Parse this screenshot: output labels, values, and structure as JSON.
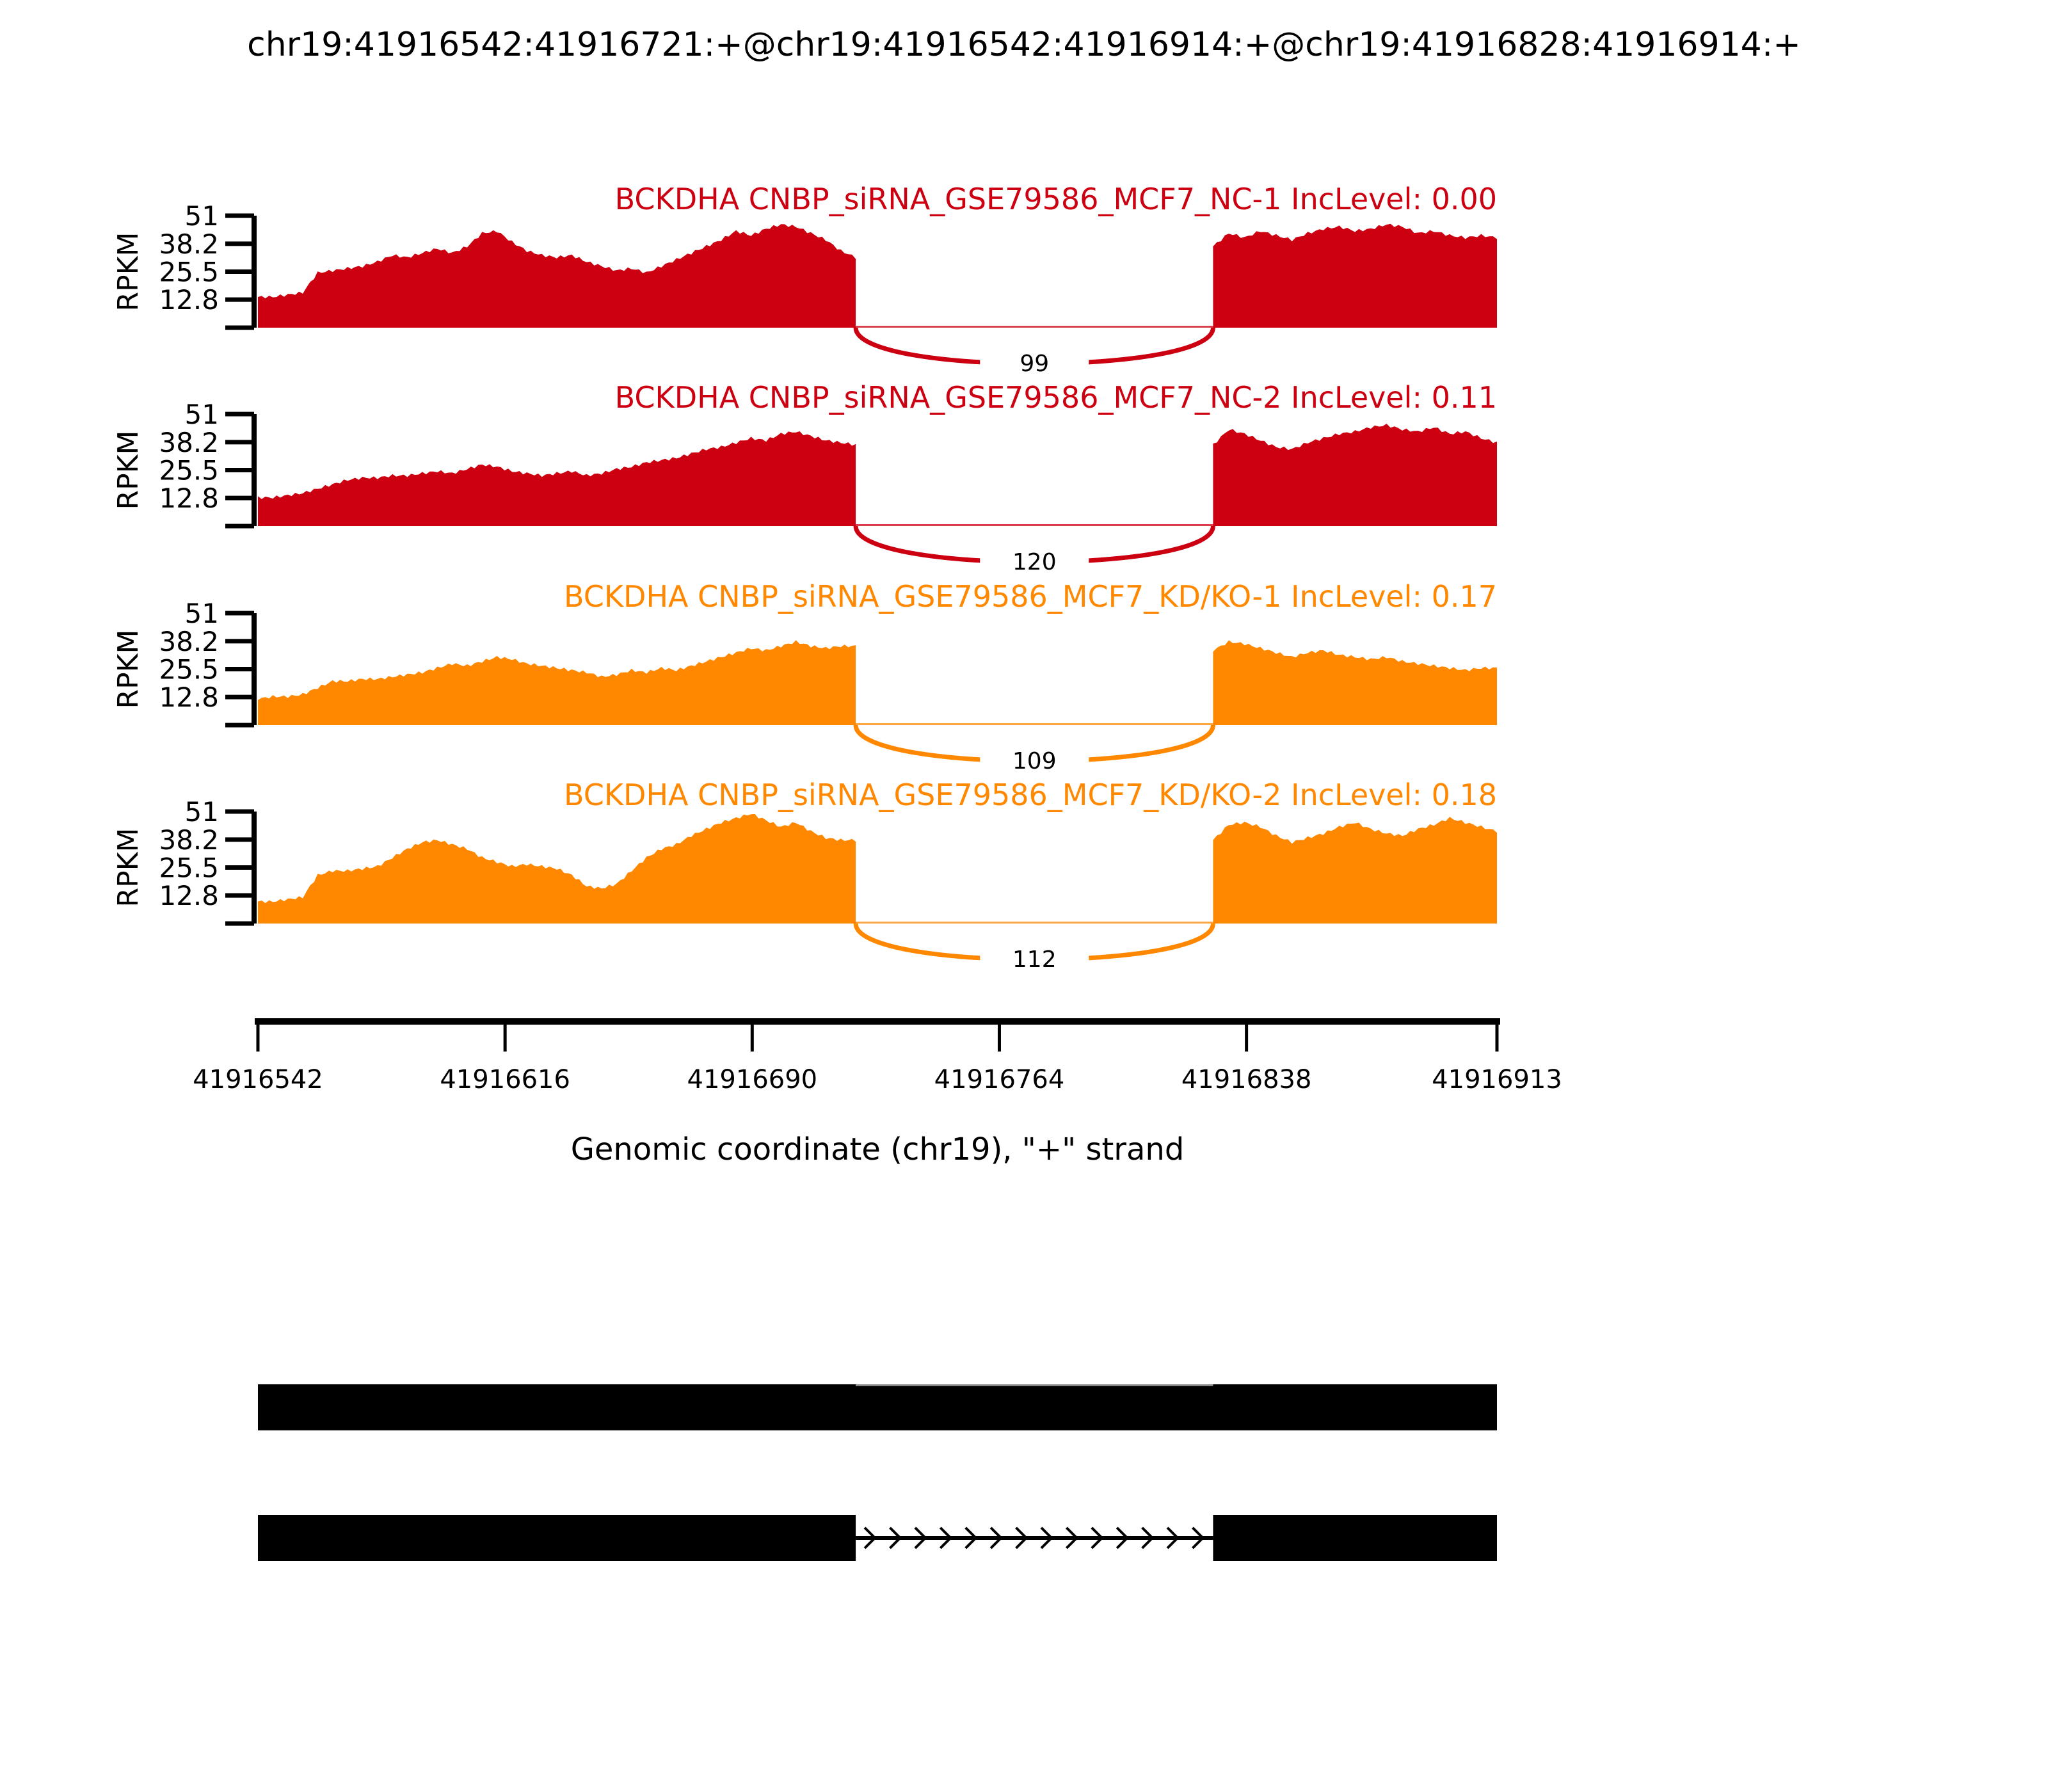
{
  "title": "chr19:41916542:41916721:+@chr19:41916542:41916914:+@chr19:41916828:41916914:+",
  "chart_data": {
    "type": "area",
    "subtype": "sashimi-plot",
    "region": {
      "chrom": "chr19",
      "start": 41916542,
      "end": 41916913,
      "strand": "+"
    },
    "xlabel": "Genomic coordinate (chr19), \"+\" strand",
    "ylabel": "RPKM",
    "ylim": [
      0,
      51
    ],
    "yticks": [
      51,
      38.2,
      25.5,
      12.8
    ],
    "xticks": [
      41916542,
      41916616,
      41916690,
      41916764,
      41916838,
      41916913
    ],
    "exon1": {
      "start": 41916542,
      "end": 41916721
    },
    "intron": {
      "start": 41916721,
      "end": 41916828
    },
    "exon2": {
      "start": 41916828,
      "end": 41916913
    },
    "group_colors": {
      "group1": "#CC0011",
      "group2": "#FF8800"
    },
    "tracks": [
      {
        "label": "BCKDHA CNBP_siRNA_GSE79586_MCF7_NC-1 IncLevel: 0.00",
        "sample": "BCKDHA CNBP_siRNA_GSE79586_MCF7_NC-1",
        "inc_level": "0.00",
        "color": "#CC0011",
        "junction_reads": 99,
        "coverage_exon1": [
          14,
          14,
          15,
          16,
          25,
          26,
          27,
          28,
          30,
          33,
          32,
          34,
          36,
          34,
          37,
          43,
          44,
          39,
          35,
          33,
          32,
          33,
          30,
          28,
          26,
          27,
          25,
          28,
          31,
          34,
          37,
          40,
          44,
          42,
          45,
          47,
          46,
          43,
          40,
          35,
          32
        ],
        "coverage_exon2": [
          37,
          43,
          41,
          44,
          42,
          40,
          43,
          45,
          46,
          44,
          45,
          47,
          46,
          43,
          44,
          42,
          41,
          42,
          41
        ]
      },
      {
        "label": "BCKDHA CNBP_siRNA_GSE79586_MCF7_NC-2 IncLevel: 0.11",
        "sample": "BCKDHA CNBP_siRNA_GSE79586_MCF7_NC-2",
        "inc_level": "0.11",
        "color": "#CC0011",
        "junction_reads": 120,
        "coverage_exon1": [
          13,
          13,
          14,
          15,
          17,
          19,
          21,
          22,
          22,
          23,
          23,
          24,
          25,
          24,
          26,
          28,
          27,
          25,
          24,
          23,
          24,
          25,
          23,
          24,
          26,
          27,
          29,
          30,
          31,
          33,
          35,
          36,
          38,
          40,
          39,
          42,
          43,
          41,
          39,
          38,
          37
        ],
        "coverage_exon2": [
          37,
          44,
          42,
          39,
          36,
          35,
          38,
          40,
          42,
          43,
          45,
          46,
          44,
          43,
          45,
          42,
          43,
          40,
          38
        ]
      },
      {
        "label": "BCKDHA CNBP_siRNA_GSE79586_MCF7_KD/KO-1 IncLevel: 0.17",
        "sample": "BCKDHA CNBP_siRNA_GSE79586_MCF7_KD/KO-1",
        "inc_level": "0.17",
        "color": "#FF8800",
        "junction_reads": 109,
        "coverage_exon1": [
          12,
          13,
          13,
          14,
          17,
          20,
          20,
          21,
          21,
          22,
          23,
          24,
          26,
          28,
          27,
          29,
          31,
          30,
          28,
          27,
          26,
          25,
          24,
          22,
          23,
          25,
          24,
          26,
          25,
          27,
          29,
          31,
          33,
          35,
          34,
          36,
          38,
          36,
          35,
          36,
          36
        ],
        "coverage_exon2": [
          34,
          38,
          37,
          35,
          33,
          31,
          33,
          34,
          32,
          31,
          30,
          31,
          29,
          28,
          27,
          26,
          25,
          26,
          26
        ]
      },
      {
        "label": "BCKDHA CNBP_siRNA_GSE79586_MCF7_KD/KO-2 IncLevel: 0.18",
        "sample": "BCKDHA CNBP_siRNA_GSE79586_MCF7_KD/KO-2",
        "inc_level": "0.18",
        "color": "#FF8800",
        "junction_reads": 112,
        "coverage_exon1": [
          10,
          10,
          11,
          12,
          22,
          24,
          24,
          25,
          26,
          30,
          34,
          37,
          38,
          36,
          34,
          30,
          28,
          26,
          27,
          26,
          25,
          22,
          17,
          16,
          18,
          24,
          30,
          34,
          36,
          40,
          43,
          46,
          48,
          50,
          47,
          44,
          46,
          42,
          39,
          38,
          38
        ],
        "coverage_exon2": [
          38,
          45,
          46,
          44,
          40,
          37,
          39,
          41,
          44,
          46,
          43,
          41,
          40,
          43,
          45,
          48,
          46,
          44,
          42
        ]
      }
    ],
    "isoforms": {
      "inclusion": {
        "exons": [
          [
            41916542,
            41916913
          ]
        ],
        "color": "#000000"
      },
      "skipping": {
        "exons": [
          [
            41916542,
            41916721
          ],
          [
            41916828,
            41916913
          ]
        ],
        "intron": [
          41916721,
          41916828
        ],
        "intron_arrow_direction": "right",
        "color": "#000000"
      }
    }
  }
}
